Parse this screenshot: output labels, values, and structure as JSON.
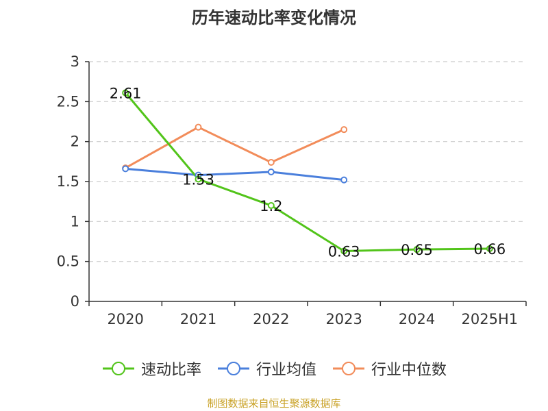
{
  "chart_data": {
    "type": "line",
    "title": "历年速动比率变化情况",
    "categories": [
      "2020",
      "2021",
      "2022",
      "2023",
      "2024",
      "2025H1"
    ],
    "ylim": [
      0,
      3
    ],
    "yticks": [
      "0",
      "0.5",
      "1",
      "1.5",
      "2",
      "2.5",
      "3"
    ],
    "grid": true,
    "legend_position": "bottom",
    "series": [
      {
        "name": "速动比率",
        "color": "#52c41a",
        "values": [
          2.61,
          1.53,
          1.2,
          0.63,
          0.65,
          0.66
        ],
        "labels": [
          "2.61",
          "1.53",
          "1.2",
          "0.63",
          "0.65",
          "0.66"
        ]
      },
      {
        "name": "行业均值",
        "color": "#4a7fdc",
        "values": [
          1.66,
          1.58,
          1.62,
          1.52,
          null,
          null
        ]
      },
      {
        "name": "行业中位数",
        "color": "#f28c5a",
        "values": [
          1.67,
          2.18,
          1.74,
          2.15,
          null,
          null
        ]
      }
    ]
  },
  "source": "制图数据来自恒生聚源数据库"
}
